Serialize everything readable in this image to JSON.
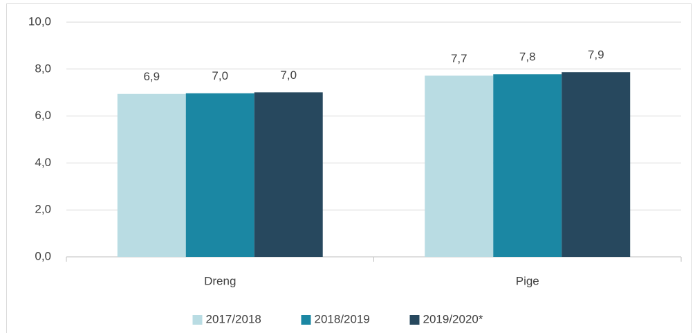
{
  "chart_data": {
    "type": "bar",
    "categories": [
      "Dreng",
      "Pige"
    ],
    "series": [
      {
        "name": "2017/2018",
        "color": "#b9dce3",
        "values": [
          6.94,
          7.72
        ],
        "value_labels": [
          "6,9",
          "7,7"
        ]
      },
      {
        "name": "2018/2019",
        "color": "#1b87a3",
        "values": [
          6.97,
          7.78
        ],
        "value_labels": [
          "7,0",
          "7,8"
        ]
      },
      {
        "name": "2019/2020*",
        "color": "#27485e",
        "values": [
          7.01,
          7.87
        ],
        "value_labels": [
          "7,0",
          "7,9"
        ]
      }
    ],
    "ylim": [
      0,
      10
    ],
    "yticks": [
      {
        "value": 0,
        "label": "0,0"
      },
      {
        "value": 2,
        "label": "2,0"
      },
      {
        "value": 4,
        "label": "4,0"
      },
      {
        "value": 6,
        "label": "6,0"
      },
      {
        "value": 8,
        "label": "8,0"
      },
      {
        "value": 10,
        "label": "10,0"
      }
    ],
    "grid": true,
    "legend": "bottom"
  }
}
